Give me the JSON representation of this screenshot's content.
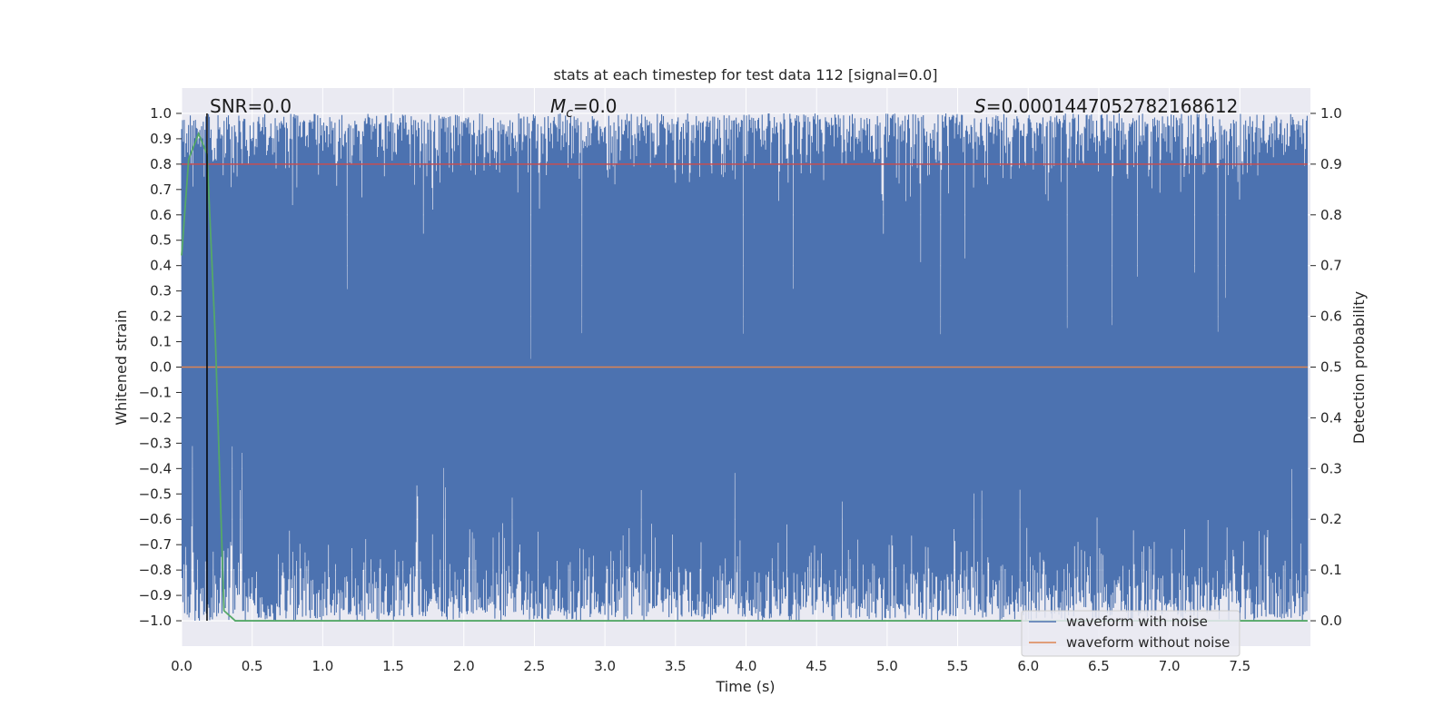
{
  "chart_data": {
    "type": "line",
    "title": "stats at each timestep for test data 112 [signal=0.0]",
    "xlabel": "Time (s)",
    "ylabel_left": "Whitened strain",
    "ylabel_right": "Detection probability",
    "xlim": [
      0.0,
      8.0
    ],
    "ylim_left": [
      -1.1,
      1.1
    ],
    "ylim_right": [
      -0.05,
      1.05
    ],
    "x_ticks": [
      "0.0",
      "0.5",
      "1.0",
      "1.5",
      "2.0",
      "2.5",
      "3.0",
      "3.5",
      "4.0",
      "4.5",
      "5.0",
      "5.5",
      "6.0",
      "6.5",
      "7.0",
      "7.5"
    ],
    "y_left_ticks": [
      "1.0",
      "0.9",
      "0.8",
      "0.7",
      "0.6",
      "0.5",
      "0.4",
      "0.3",
      "0.2",
      "0.1",
      "0.0",
      "−0.1",
      "−0.2",
      "−0.3",
      "−0.4",
      "−0.5",
      "−0.6",
      "−0.7",
      "−0.8",
      "−0.9",
      "−1.0"
    ],
    "y_right_ticks": [
      "1.0",
      "0.9",
      "0.8",
      "0.7",
      "0.6",
      "0.5",
      "0.4",
      "0.3",
      "0.2",
      "0.1",
      "0.0"
    ],
    "grid": true,
    "legend_position": "lower right",
    "annotations": {
      "snr": "SNR=0.0",
      "mc_symbol": "M",
      "mc_sub": "c",
      "mc_value": "=0.0",
      "s_symbol": "S",
      "s_value": "=0.0001447052782168612"
    },
    "series": [
      {
        "name": "waveform with noise",
        "axis": "left",
        "color": "#4c72b0",
        "description_range": [
          -1.0,
          1.0
        ]
      },
      {
        "name": "waveform without noise",
        "axis": "left",
        "color": "#dd8452",
        "x": [
          0.0,
          8.0
        ],
        "y": [
          0.0,
          0.0
        ]
      },
      {
        "axis": "right",
        "color": "#55a868",
        "x": [
          0.0,
          0.05,
          0.12,
          0.18,
          0.24,
          0.3,
          0.38,
          8.0
        ],
        "y": [
          0.72,
          0.91,
          0.96,
          0.92,
          0.55,
          0.02,
          0.0,
          0.0
        ]
      },
      {
        "axis": "right",
        "color": "#c44e52",
        "x": [
          0.0,
          8.0
        ],
        "y": [
          0.9,
          0.9
        ]
      }
    ],
    "vertical_line_x": 0.18
  },
  "colors": {
    "axes_bg": "#eaeaf2",
    "grid": "#ffffff",
    "noise": "#4c72b0",
    "clean": "#dd8452",
    "prob": "#55a868",
    "threshold": "#c44e52",
    "vline": "#000000"
  }
}
